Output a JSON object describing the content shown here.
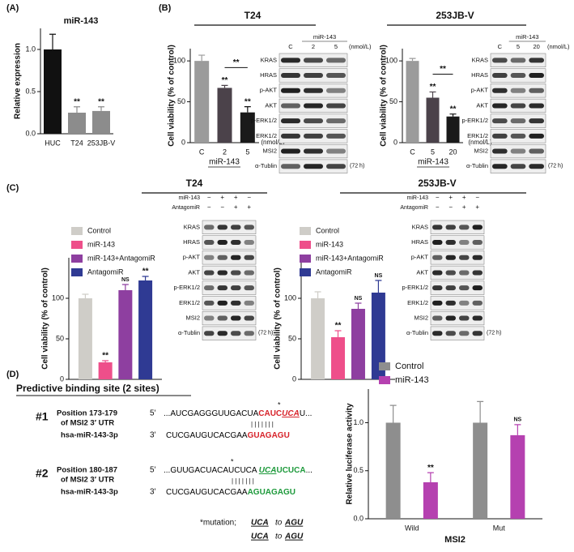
{
  "panels": [
    "(A)",
    "(B)",
    "(C)",
    "(D)"
  ],
  "chart_data": [
    {
      "type": "bar",
      "title": "miR-143",
      "ylabel": "Relative expression",
      "categories": [
        "HUC",
        "T24",
        "253JB-V"
      ],
      "values": [
        1.0,
        0.25,
        0.27
      ],
      "errors": [
        0.18,
        0.07,
        0.05
      ],
      "annotations": [
        null,
        "**",
        "**"
      ],
      "colors": [
        "#111111",
        "#8c8c8c",
        "#8c8c8c"
      ],
      "ylim": [
        0,
        1.25
      ],
      "yticks": [
        {
          "value": 0,
          "label": "0.0"
        },
        0.5,
        {
          "value": 1,
          "label": "1.0"
        }
      ]
    },
    {
      "type": "bar",
      "title": "T24",
      "ylabel": "Cell viability (% of control)",
      "xlabel": "miR-143",
      "x_unit": "(nmol/L)",
      "categories": [
        "C",
        "2",
        "5"
      ],
      "values": [
        100,
        67,
        37
      ],
      "errors": [
        7,
        3,
        7
      ],
      "annotations": [
        null,
        "**",
        "**"
      ],
      "bracket_label": "**",
      "colors": [
        "#9b9b9b",
        "#4b424a",
        "#1a1a1a"
      ],
      "ylim": [
        0,
        115
      ],
      "yticks": [
        0,
        50,
        100
      ]
    },
    {
      "type": "bar",
      "title": "253JB-V",
      "ylabel": "Cell viability (% of control)",
      "xlabel": "miR-143",
      "x_unit": "(nmol/L)",
      "categories": [
        "C",
        "5",
        "20"
      ],
      "values": [
        100,
        55,
        32
      ],
      "errors": [
        3,
        7,
        3
      ],
      "annotations": [
        null,
        "**",
        "**"
      ],
      "bracket_label": "**",
      "colors": [
        "#9b9b9b",
        "#4b424a",
        "#1a1a1a"
      ],
      "ylim": [
        0,
        115
      ],
      "yticks": [
        0,
        50,
        100
      ]
    },
    {
      "type": "bar",
      "title": "T24",
      "ylabel": "Cell viability (% of control)",
      "categories": [
        null
      ],
      "series": [
        {
          "name": "Control",
          "color": "#cfcdc8",
          "values": [
            100
          ],
          "errors": [
            5
          ],
          "annotations": [
            null
          ]
        },
        {
          "name": "miR-143",
          "color": "#ee4f8a",
          "values": [
            21
          ],
          "errors": [
            2
          ],
          "annotations": [
            "**"
          ]
        },
        {
          "name": "miR-143+AntagomiR",
          "color": "#8e3fa0",
          "values": [
            110
          ],
          "errors": [
            7
          ],
          "annotations": [
            "NS"
          ]
        },
        {
          "name": "AntagomiR",
          "color": "#2f3a93",
          "values": [
            122
          ],
          "errors": [
            5
          ],
          "annotations": [
            "**"
          ]
        }
      ],
      "ylim": [
        0,
        150
      ],
      "yticks": [
        0,
        50,
        100
      ]
    },
    {
      "type": "bar",
      "title": "253JB-V",
      "ylabel": "Cell viability (% of control)",
      "categories": [
        null
      ],
      "series": [
        {
          "name": "Control",
          "color": "#cfcdc8",
          "values": [
            100
          ],
          "errors": [
            8
          ],
          "annotations": [
            null
          ]
        },
        {
          "name": "miR-143",
          "color": "#ee4f8a",
          "values": [
            52
          ],
          "errors": [
            8
          ],
          "annotations": [
            "**"
          ]
        },
        {
          "name": "miR-143+AntagomiR",
          "color": "#8e3fa0",
          "values": [
            87
          ],
          "errors": [
            7
          ],
          "annotations": [
            "NS"
          ]
        },
        {
          "name": "AntagomiR",
          "color": "#2f3a93",
          "values": [
            107
          ],
          "errors": [
            15
          ],
          "annotations": [
            "NS"
          ]
        }
      ],
      "ylim": [
        0,
        150
      ],
      "yticks": [
        0,
        50,
        100
      ]
    },
    {
      "type": "bar",
      "ylabel": "Relative luciferase activity",
      "xlabel": "MSI2",
      "categories": [
        "Wild",
        "Mut"
      ],
      "series": [
        {
          "name": "Control",
          "color": "#8e8e8e",
          "values": [
            1.0,
            1.0
          ],
          "errors": [
            0.18,
            0.22
          ],
          "annotations": [
            null,
            null
          ]
        },
        {
          "name": "miR-143",
          "color": "#b541b0",
          "values": [
            0.38,
            0.87
          ],
          "errors": [
            0.1,
            0.11
          ],
          "annotations": [
            "**",
            "NS"
          ]
        }
      ],
      "ylim": [
        0,
        1.35
      ],
      "yticks": [
        {
          "value": 0,
          "label": "0.0"
        },
        0.5,
        {
          "value": 1,
          "label": "1.0"
        }
      ]
    }
  ],
  "blots": [
    {
      "group": "miR-143",
      "unit": "(nmol/L)",
      "columns": [
        "C",
        "2",
        "5"
      ],
      "rows": [
        "KRAS",
        "HRAS",
        "p-AKT",
        "AKT",
        "p-ERK1/2",
        "ERK1/2",
        "MSI2",
        "α-Tublin"
      ],
      "time": "(72 h)"
    },
    {
      "group": "miR-143",
      "unit": "(nmol/L)",
      "columns": [
        "C",
        "5",
        "20"
      ],
      "rows": [
        "KRAS",
        "HRAS",
        "p-AKT",
        "AKT",
        "p-ERK1/2",
        "ERK1/2",
        "MSI2",
        "α-Tublin"
      ],
      "time": "(72 h)"
    },
    {
      "conditions": [
        {
          "name": "miR-143",
          "signs": [
            "−",
            "+",
            "+",
            "−"
          ]
        },
        {
          "name": "AntagomiR",
          "signs": [
            "−",
            "−",
            "+",
            "+"
          ]
        }
      ],
      "rows": [
        "KRAS",
        "HRAS",
        "p-AKT",
        "AKT",
        "p-ERK1/2",
        "ERK1/2",
        "MSI2",
        "α-Tublin"
      ],
      "time": "(72 h)"
    },
    {
      "conditions": [
        {
          "name": "miR-143",
          "signs": [
            "−",
            "+",
            "+",
            "−"
          ]
        },
        {
          "name": "AntagomiR",
          "signs": [
            "−",
            "−",
            "+",
            "+"
          ]
        }
      ],
      "rows": [
        "KRAS",
        "HRAS",
        "p-AKT",
        "AKT",
        "p-ERK1/2",
        "ERK1/2",
        "MSI2",
        "α-Tublin"
      ],
      "time": "(72 h)"
    }
  ],
  "binding": {
    "title": "Predictive binding site (2 sites)",
    "sites": [
      {
        "number": "#1",
        "position": "Position 173-179",
        "utr": "of MSI2 3′ UTR",
        "mirna": "hsa-miR-143-3p",
        "end5": "5'",
        "end3": "3'",
        "star": "*",
        "pairs": "| | | | | | |",
        "target": [
          {
            "text": "...AUCGAGGGUUGACUA",
            "color": "#000000"
          },
          {
            "text": "CAUC",
            "color": "#d7232a"
          },
          {
            "text": "UCA",
            "color": "#d7232a",
            "underline": true
          },
          {
            "text": "U...",
            "color": "#000000"
          }
        ],
        "mirseq": [
          {
            "text": "CUCGAUGUCACGAA",
            "color": "#000000"
          },
          {
            "text": "GUAGAGU",
            "color": "#d7232a"
          }
        ]
      },
      {
        "number": "#2",
        "position": "Position 180-187",
        "utr": "of MSI2 3′ UTR",
        "mirna": "hsa-miR-143-3p",
        "end5": "5'",
        "end3": "3'",
        "star": "*",
        "pairs": "| | | | | | |",
        "target": [
          {
            "text": "...GUUGACUACAUCUCA ",
            "color": "#000000"
          },
          {
            "text": "UCA",
            "color": "#1e9a3c",
            "underline": true
          },
          {
            "text": "UCUCA",
            "color": "#1e9a3c"
          },
          {
            "text": "...",
            "color": "#000000"
          }
        ],
        "mirseq": [
          {
            "text": "CUCGAUGUCACGAA",
            "color": "#000000"
          },
          {
            "text": "AGUAGAGU",
            "color": "#1e9a3c"
          }
        ]
      }
    ],
    "mutation": [
      "*mutation;",
      "UCA",
      "to",
      "AGU",
      "UCA",
      "to",
      "AGU"
    ]
  }
}
